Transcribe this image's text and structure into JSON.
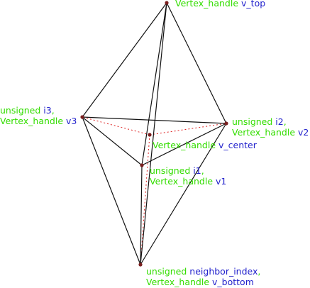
{
  "colors": {
    "edge": "#111111",
    "hidden_edge": "#dd2222",
    "vertex": "#7a1f1f",
    "label_type": "#33dd00",
    "label_keyword": "#2222cc"
  },
  "vertices": {
    "top": {
      "lines": [
        [
          {
            "t": "Vertex_handle ",
            "k": false
          },
          {
            "t": "v_top",
            "k": true
          }
        ]
      ]
    },
    "v3": {
      "lines": [
        [
          {
            "t": "unsigned ",
            "k": false
          },
          {
            "t": "i3",
            "k": true
          },
          {
            "t": ",",
            "k": false
          }
        ],
        [
          {
            "t": "Vertex_handle ",
            "k": false
          },
          {
            "t": "v3",
            "k": true
          }
        ]
      ]
    },
    "v2": {
      "lines": [
        [
          {
            "t": "unsigned ",
            "k": false
          },
          {
            "t": "i2",
            "k": true
          },
          {
            "t": ",",
            "k": false
          }
        ],
        [
          {
            "t": "Vertex_handle ",
            "k": false
          },
          {
            "t": "v2",
            "k": true
          }
        ]
      ]
    },
    "center": {
      "lines": [
        [
          {
            "t": "Vertex_handle ",
            "k": false
          },
          {
            "t": "v_center",
            "k": true
          }
        ]
      ]
    },
    "v1": {
      "lines": [
        [
          {
            "t": "unsigned ",
            "k": false
          },
          {
            "t": "i1",
            "k": true
          },
          {
            "t": ",",
            "k": false
          }
        ],
        [
          {
            "t": "Vertex_handle ",
            "k": false
          },
          {
            "t": "v1",
            "k": true
          }
        ]
      ]
    },
    "bottom": {
      "lines": [
        [
          {
            "t": "unsigned ",
            "k": false
          },
          {
            "t": "neighbor_index",
            "k": true
          },
          {
            "t": ",",
            "k": false
          }
        ],
        [
          {
            "t": "Vertex_handle ",
            "k": false
          },
          {
            "t": "v_bottom",
            "k": true
          }
        ]
      ]
    }
  },
  "edges": [
    [
      "top",
      "v3"
    ],
    [
      "top",
      "v2"
    ],
    [
      "top",
      "v1"
    ],
    [
      "top",
      "bottom"
    ],
    [
      "v3",
      "v2"
    ],
    [
      "v3",
      "v1"
    ],
    [
      "v1",
      "v2"
    ],
    [
      "v3",
      "bottom"
    ],
    [
      "v2",
      "bottom"
    ],
    [
      "v1",
      "bottom"
    ]
  ],
  "hidden_edges": [
    [
      "center",
      "v3"
    ],
    [
      "center",
      "v2"
    ],
    [
      "center",
      "bottom"
    ]
  ]
}
